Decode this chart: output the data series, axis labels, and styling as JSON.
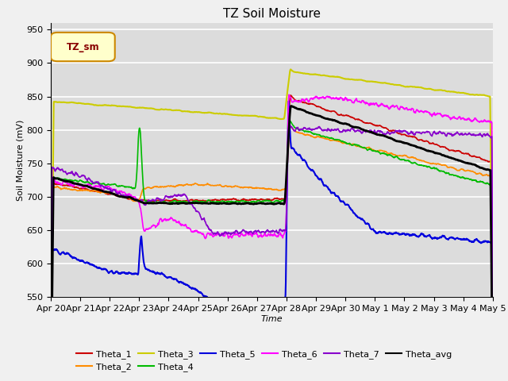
{
  "title": "TZ Soil Moisture",
  "xlabel": "Time",
  "ylabel": "Soil Moisture (mV)",
  "ylim": [
    550,
    960
  ],
  "yticks": [
    550,
    600,
    650,
    700,
    750,
    800,
    850,
    900,
    950
  ],
  "bg_color": "#dcdcdc",
  "fig_color": "#f0f0f0",
  "legend_label": "TZ_sm",
  "series_colors": {
    "Theta_1": "#cc0000",
    "Theta_2": "#ff8c00",
    "Theta_3": "#cccc00",
    "Theta_4": "#00bb00",
    "Theta_5": "#0000dd",
    "Theta_6": "#ff00ff",
    "Theta_7": "#8800cc",
    "Theta_avg": "#000000"
  },
  "tick_labels": [
    "Apr 20",
    "Apr 21",
    "Apr 22",
    "Apr 23",
    "Apr 24",
    "Apr 25",
    "Apr 26",
    "Apr 27",
    "Apr 28",
    "Apr 29",
    "Apr 30",
    "May 1",
    "May 2",
    "May 3",
    "May 4",
    "May 5"
  ]
}
